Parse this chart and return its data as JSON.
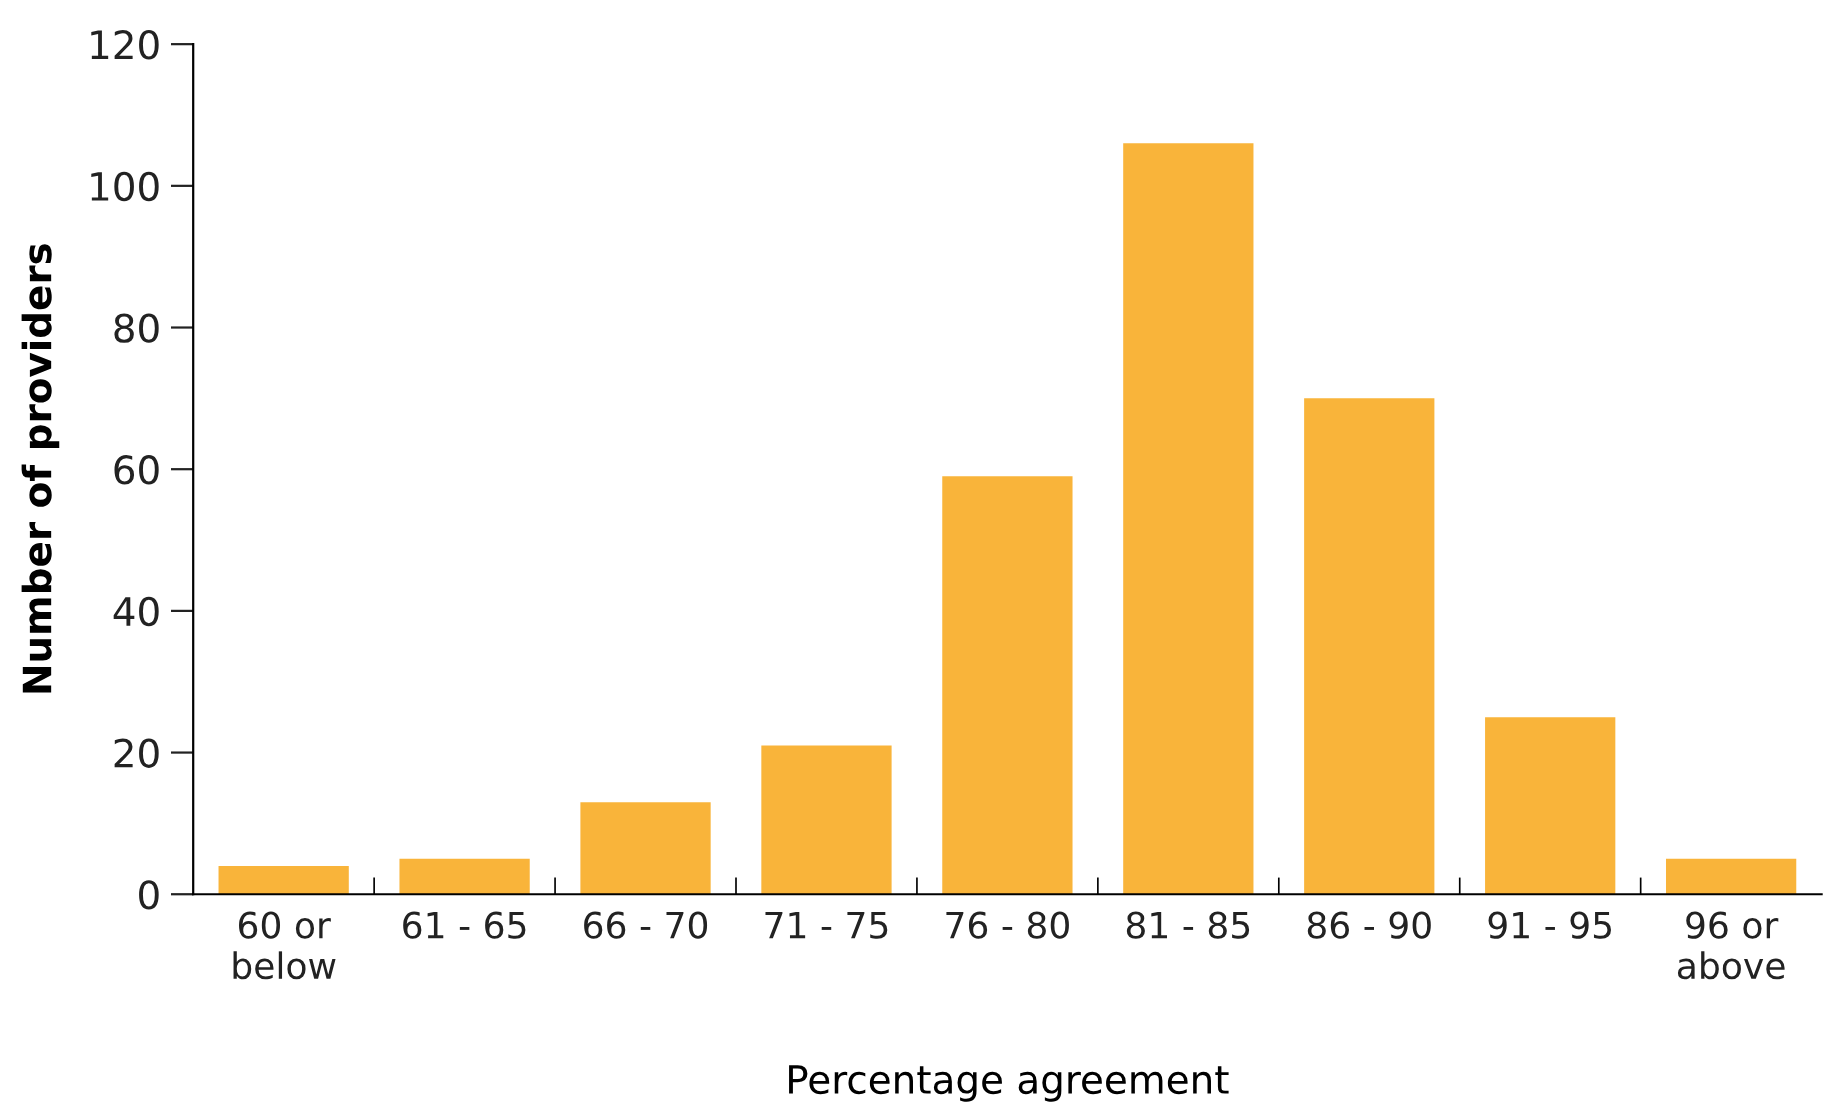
{
  "chart_data": {
    "type": "bar",
    "xlabel": "Percentage agreement",
    "ylabel": "Number of providers",
    "categories": [
      "60 or\nbelow",
      "61 - 65",
      "66 - 70",
      "71 - 75",
      "76 - 80",
      "81 - 85",
      "86 - 90",
      "91 - 95",
      "96 or\nabove"
    ],
    "values": [
      4,
      5,
      13,
      21,
      59,
      106,
      70,
      25,
      5
    ],
    "color": "#f9b43a",
    "ylim": [
      0,
      120
    ],
    "yticks": [
      0,
      20,
      40,
      60,
      80,
      100,
      120
    ],
    "grid": false,
    "legend": false
  }
}
